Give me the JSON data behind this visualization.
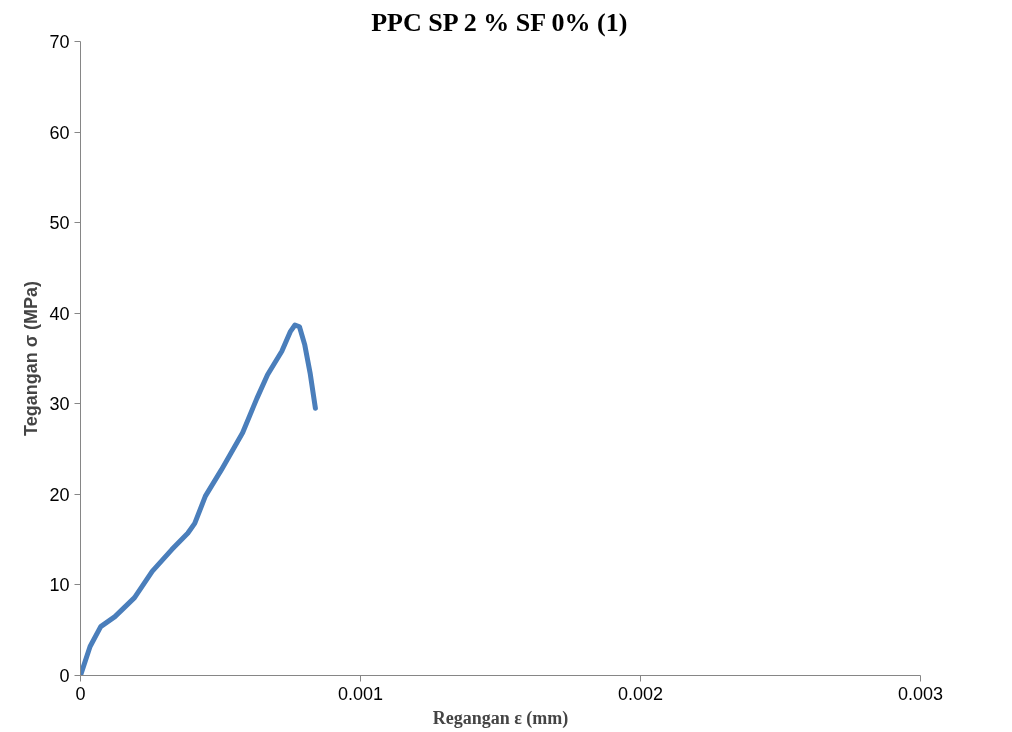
{
  "chart_data": {
    "type": "line",
    "title": "PPC SP 2 % SF 0% (1)",
    "xlabel": "Regangan ε (mm)",
    "ylabel": "Tegangan σ (MPa)",
    "series": [
      {
        "color": "#4a7ebb",
        "x": [
          0,
          3.42e-05,
          7.22e-05,
          0.000123,
          0.000193,
          0.000256,
          0.000326,
          0.000383,
          0.000408,
          0.000446,
          0.000503,
          0.000579,
          0.00063,
          0.000668,
          0.000719,
          0.00075,
          0.000766,
          0.000782,
          0.000801,
          0.00082,
          0.000839
        ],
        "values": [
          0,
          3.2,
          5.4,
          6.5,
          8.6,
          11.5,
          13.9,
          15.7,
          16.8,
          19.8,
          22.7,
          26.8,
          30.6,
          33.2,
          35.8,
          38.0,
          38.7,
          38.5,
          36.5,
          33.4,
          29.5
        ]
      }
    ],
    "xlim": [
      0,
      0.003
    ],
    "ylim": [
      0,
      70
    ],
    "xticks": [
      0,
      0.001,
      0.002,
      0.003
    ],
    "yticks": [
      0,
      10,
      20,
      30,
      40,
      50,
      60,
      70
    ],
    "grid": false,
    "marker": "none",
    "line_style": "solid"
  }
}
